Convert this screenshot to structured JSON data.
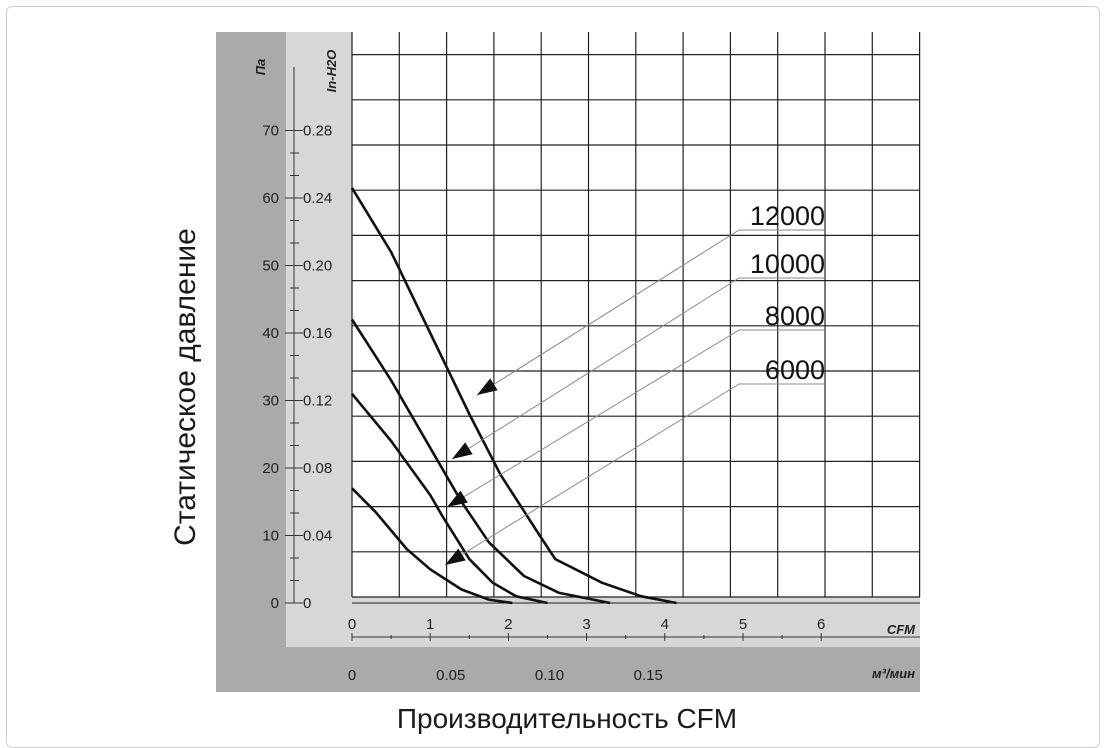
{
  "chart_data": {
    "type": "line",
    "ylabel": "Статическое давление",
    "xlabel": "Производительность CFM",
    "y_axis_pa": {
      "unit": "Па",
      "ticks": [
        "70",
        "60",
        "50",
        "40",
        "30",
        "20",
        "10",
        "0"
      ],
      "values": [
        70,
        60,
        50,
        40,
        30,
        20,
        10,
        0
      ]
    },
    "y_axis_inh2o": {
      "unit": "In-H2O",
      "ticks": [
        "0.28",
        "0.24",
        "0.20",
        "0.16",
        "0.12",
        "0.08",
        "0.04",
        "0"
      ],
      "values": [
        0.28,
        0.24,
        0.2,
        0.16,
        0.12,
        0.08,
        0.04,
        0
      ]
    },
    "x_axis_cfm": {
      "unit": "CFM",
      "ticks": [
        "0",
        "1",
        "2",
        "3",
        "4",
        "5",
        "6"
      ],
      "values": [
        0,
        1,
        2,
        3,
        4,
        5,
        6
      ]
    },
    "x_axis_m3min": {
      "unit": "м³/мин",
      "ticks": [
        "0",
        "0.05",
        "0.10",
        "0.15"
      ],
      "values": [
        0,
        0.05,
        0.1,
        0.15
      ]
    },
    "xlim_cfm": [
      0,
      7
    ],
    "ylim_pa": [
      0,
      80
    ],
    "grid": true,
    "series": [
      {
        "name": "12000",
        "points": [
          [
            0,
            61.5
          ],
          [
            0.5,
            52
          ],
          [
            1,
            40
          ],
          [
            1.5,
            28
          ],
          [
            1.9,
            19
          ],
          [
            2.4,
            10
          ],
          [
            2.6,
            6.5
          ],
          [
            3.2,
            3
          ],
          [
            3.7,
            1
          ],
          [
            4.15,
            0
          ]
        ]
      },
      {
        "name": "10000",
        "points": [
          [
            0,
            42
          ],
          [
            0.5,
            33
          ],
          [
            1,
            23
          ],
          [
            1.4,
            15
          ],
          [
            1.75,
            9
          ],
          [
            2.2,
            4
          ],
          [
            2.65,
            1.5
          ],
          [
            3.3,
            0
          ]
        ]
      },
      {
        "name": "8000",
        "points": [
          [
            0,
            31
          ],
          [
            0.5,
            24
          ],
          [
            1,
            16
          ],
          [
            1.15,
            13
          ],
          [
            1.5,
            6.5
          ],
          [
            1.8,
            3
          ],
          [
            2.1,
            1
          ],
          [
            2.5,
            0
          ]
        ]
      },
      {
        "name": "6000",
        "points": [
          [
            0,
            17
          ],
          [
            0.3,
            13.5
          ],
          [
            0.7,
            8
          ],
          [
            1,
            5
          ],
          [
            1.4,
            2
          ],
          [
            1.75,
            0.5
          ],
          [
            2.05,
            0
          ]
        ]
      }
    ],
    "labels": [
      "12000",
      "10000",
      "8000",
      "6000"
    ]
  }
}
